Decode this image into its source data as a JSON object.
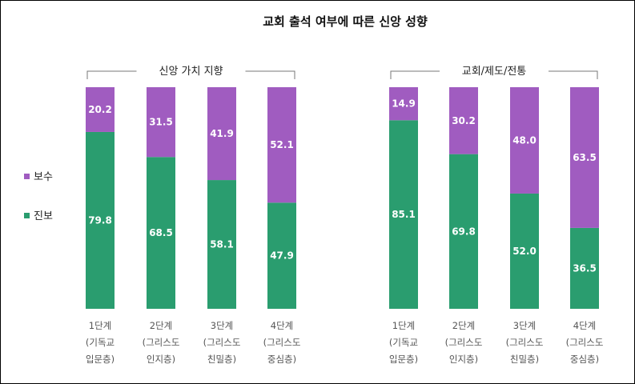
{
  "chart_data": {
    "type": "bar",
    "stacked": true,
    "title": "교회 출석 여부에 따른 신앙 성향",
    "colors": {
      "보수": "#a05cc0",
      "진보": "#2a9d6f"
    },
    "legend": {
      "placement": "left",
      "items": [
        "보수",
        "진보"
      ]
    },
    "ylim": [
      0,
      100
    ],
    "grid": false,
    "panels": [
      {
        "group_label": "신앙 가치 지향",
        "categories": [
          [
            "1단계",
            "(기독교",
            "입문층)"
          ],
          [
            "2단계",
            "(그리스도",
            "인지층)"
          ],
          [
            "3단계",
            "(그리스도",
            "친밀층)"
          ],
          [
            "4단계",
            "(그리스도",
            "중심층)"
          ]
        ],
        "series": [
          {
            "name": "진보",
            "values": [
              79.8,
              68.5,
              58.1,
              47.9
            ]
          },
          {
            "name": "보수",
            "values": [
              20.2,
              31.5,
              41.9,
              52.1
            ]
          }
        ]
      },
      {
        "group_label": "교회/제도/전통",
        "categories": [
          [
            "1단계",
            "(기독교",
            "입문층)"
          ],
          [
            "2단계",
            "(그리스도",
            "인지층)"
          ],
          [
            "3단계",
            "(그리스도",
            "친밀층)"
          ],
          [
            "4단계",
            "(그리스도",
            "중심층)"
          ]
        ],
        "series": [
          {
            "name": "진보",
            "values": [
              85.1,
              69.8,
              52.0,
              36.5
            ]
          },
          {
            "name": "보수",
            "values": [
              14.9,
              30.2,
              48.0,
              63.5
            ]
          }
        ]
      }
    ]
  }
}
